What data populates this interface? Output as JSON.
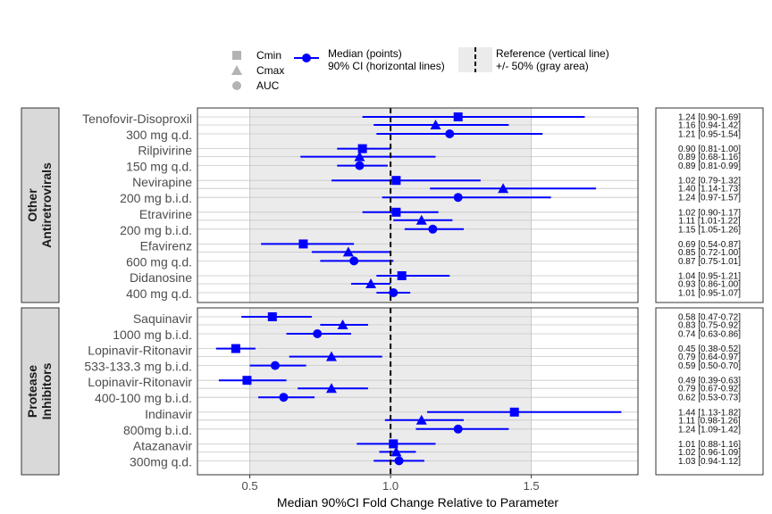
{
  "chart_data": {
    "type": "forest",
    "xlabel": "Median 90%CI Fold Change Relative to Parameter",
    "xlim": [
      0.314,
      1.879
    ],
    "xticks": [
      "0.5",
      "1.0",
      "1.5"
    ],
    "xtick_values": [
      0.5,
      1.0,
      1.5
    ],
    "reference_line": 1.0,
    "reference_band": [
      0.5,
      1.5
    ],
    "colors": {
      "series": "#0000ff",
      "band": "#ebebeb",
      "strip": "#d9d9d9",
      "reference": "#000000"
    },
    "legend": {
      "shapes": [
        {
          "label": "Cmin",
          "shape": "square"
        },
        {
          "label": "Cmax",
          "shape": "triangle"
        },
        {
          "label": "AUC",
          "shape": "circle"
        }
      ],
      "median_label": "Median (points)",
      "ci_label": "90% CI (horizontal lines)",
      "ref_label": "Reference (vertical line)",
      "band_label": "+/- 50% (gray area)",
      "placement": "top"
    },
    "panels": [
      {
        "strip": [
          "Other",
          "Antiretrovirals"
        ],
        "groups": [
          {
            "name": "Tenofovir-Disoproxil",
            "dose": "300 mg q.d.",
            "rows": [
              {
                "param": "Cmin",
                "median": 1.24,
                "lo": 0.9,
                "hi": 1.69,
                "text": "1.24 [0.90-1.69]"
              },
              {
                "param": "Cmax",
                "median": 1.16,
                "lo": 0.94,
                "hi": 1.42,
                "text": "1.16 [0.94-1.42]"
              },
              {
                "param": "AUC",
                "median": 1.21,
                "lo": 0.95,
                "hi": 1.54,
                "text": "1.21 [0.95-1.54]"
              }
            ]
          },
          {
            "name": "Rilpivirine",
            "dose": "150 mg q.d.",
            "rows": [
              {
                "param": "Cmin",
                "median": 0.9,
                "lo": 0.81,
                "hi": 1.0,
                "text": "0.90 [0.81-1.00]"
              },
              {
                "param": "Cmax",
                "median": 0.89,
                "lo": 0.68,
                "hi": 1.16,
                "text": "0.89 [0.68-1.16]"
              },
              {
                "param": "AUC",
                "median": 0.89,
                "lo": 0.81,
                "hi": 0.99,
                "text": "0.89 [0.81-0.99]"
              }
            ]
          },
          {
            "name": "Nevirapine",
            "dose": "200 mg b.i.d.",
            "rows": [
              {
                "param": "Cmin",
                "median": 1.02,
                "lo": 0.79,
                "hi": 1.32,
                "text": "1.02 [0.79-1.32]"
              },
              {
                "param": "Cmax",
                "median": 1.4,
                "lo": 1.14,
                "hi": 1.73,
                "text": "1.40 [1.14-1.73]"
              },
              {
                "param": "AUC",
                "median": 1.24,
                "lo": 0.97,
                "hi": 1.57,
                "text": "1.24 [0.97-1.57]"
              }
            ]
          },
          {
            "name": "Etravirine",
            "dose": "200 mg b.i.d.",
            "rows": [
              {
                "param": "Cmin",
                "median": 1.02,
                "lo": 0.9,
                "hi": 1.17,
                "text": "1.02 [0.90-1.17]"
              },
              {
                "param": "Cmax",
                "median": 1.11,
                "lo": 1.01,
                "hi": 1.22,
                "text": "1.11 [1.01-1.22]"
              },
              {
                "param": "AUC",
                "median": 1.15,
                "lo": 1.05,
                "hi": 1.26,
                "text": "1.15 [1.05-1.26]"
              }
            ]
          },
          {
            "name": "Efavirenz",
            "dose": "600 mg q.d.",
            "rows": [
              {
                "param": "Cmin",
                "median": 0.69,
                "lo": 0.54,
                "hi": 0.87,
                "text": "0.69 [0.54-0.87]"
              },
              {
                "param": "Cmax",
                "median": 0.85,
                "lo": 0.72,
                "hi": 1.0,
                "text": "0.85 [0.72-1.00]"
              },
              {
                "param": "AUC",
                "median": 0.87,
                "lo": 0.75,
                "hi": 1.01,
                "text": "0.87 [0.75-1.01]"
              }
            ]
          },
          {
            "name": "Didanosine",
            "dose": "400 mg q.d.",
            "rows": [
              {
                "param": "Cmin",
                "median": 1.04,
                "lo": 0.95,
                "hi": 1.21,
                "text": "1.04 [0.95-1.21]"
              },
              {
                "param": "Cmax",
                "median": 0.93,
                "lo": 0.86,
                "hi": 1.0,
                "text": "0.93 [0.86-1.00]"
              },
              {
                "param": "AUC",
                "median": 1.01,
                "lo": 0.95,
                "hi": 1.07,
                "text": "1.01 [0.95-1.07]"
              }
            ]
          }
        ]
      },
      {
        "strip": [
          "Protease",
          "Inhibitors"
        ],
        "groups": [
          {
            "name": "Saquinavir",
            "dose": "1000 mg b.i.d.",
            "rows": [
              {
                "param": "Cmin",
                "median": 0.58,
                "lo": 0.47,
                "hi": 0.72,
                "text": "0.58 [0.47-0.72]"
              },
              {
                "param": "Cmax",
                "median": 0.83,
                "lo": 0.75,
                "hi": 0.92,
                "text": "0.83 [0.75-0.92]"
              },
              {
                "param": "AUC",
                "median": 0.74,
                "lo": 0.63,
                "hi": 0.86,
                "text": "0.74 [0.63-0.86]"
              }
            ]
          },
          {
            "name": "Lopinavir-Ritonavir",
            "dose": "533-133.3 mg b.i.d.",
            "rows": [
              {
                "param": "Cmin",
                "median": 0.45,
                "lo": 0.38,
                "hi": 0.52,
                "text": "0.45 [0.38-0.52]"
              },
              {
                "param": "Cmax",
                "median": 0.79,
                "lo": 0.64,
                "hi": 0.97,
                "text": "0.79 [0.64-0.97]"
              },
              {
                "param": "AUC",
                "median": 0.59,
                "lo": 0.5,
                "hi": 0.7,
                "text": "0.59 [0.50-0.70]"
              }
            ]
          },
          {
            "name": "Lopinavir-Ritonavir",
            "dose": "400-100 mg b.i.d.",
            "rows": [
              {
                "param": "Cmin",
                "median": 0.49,
                "lo": 0.39,
                "hi": 0.63,
                "text": "0.49 [0.39-0.63]"
              },
              {
                "param": "Cmax",
                "median": 0.79,
                "lo": 0.67,
                "hi": 0.92,
                "text": "0.79 [0.67-0.92]"
              },
              {
                "param": "AUC",
                "median": 0.62,
                "lo": 0.53,
                "hi": 0.73,
                "text": "0.62 [0.53-0.73]"
              }
            ]
          },
          {
            "name": "Indinavir",
            "dose": "800mg b.i.d.",
            "rows": [
              {
                "param": "Cmin",
                "median": 1.44,
                "lo": 1.13,
                "hi": 1.82,
                "text": "1.44 [1.13-1.82]"
              },
              {
                "param": "Cmax",
                "median": 1.11,
                "lo": 0.98,
                "hi": 1.26,
                "text": "1.11 [0.98-1.26]"
              },
              {
                "param": "AUC",
                "median": 1.24,
                "lo": 1.09,
                "hi": 1.42,
                "text": "1.24 [1.09-1.42]"
              }
            ]
          },
          {
            "name": "Atazanavir",
            "dose": "300mg q.d.",
            "rows": [
              {
                "param": "Cmin",
                "median": 1.01,
                "lo": 0.88,
                "hi": 1.16,
                "text": "1.01 [0.88-1.16]"
              },
              {
                "param": "Cmax",
                "median": 1.02,
                "lo": 0.96,
                "hi": 1.09,
                "text": "1.02 [0.96-1.09]"
              },
              {
                "param": "AUC",
                "median": 1.03,
                "lo": 0.94,
                "hi": 1.12,
                "text": "1.03 [0.94-1.12]"
              }
            ]
          }
        ]
      }
    ]
  }
}
